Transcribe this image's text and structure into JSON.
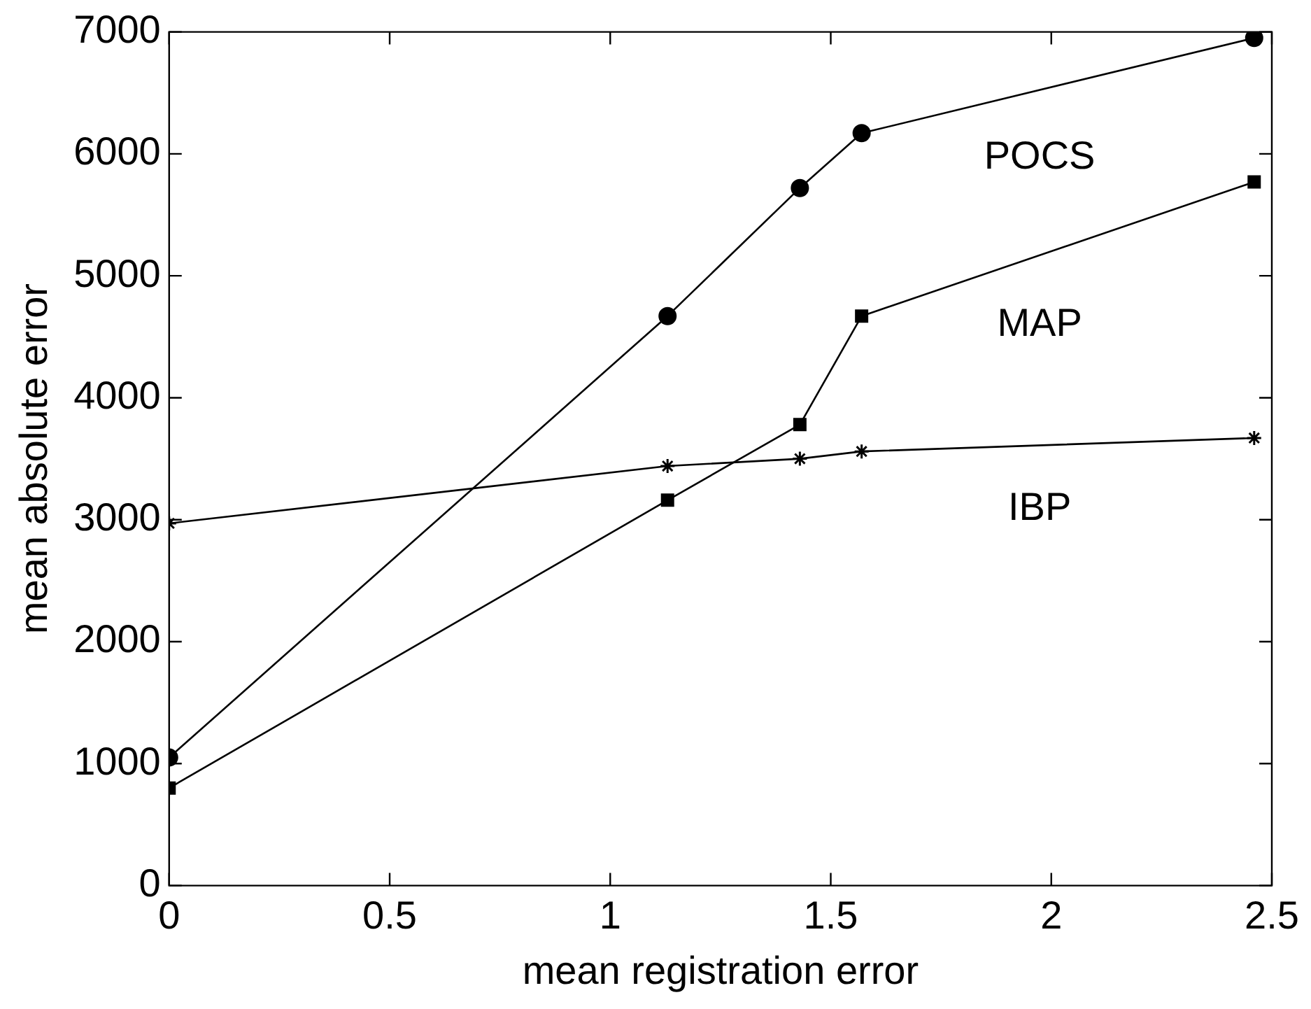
{
  "chart_data": {
    "type": "line",
    "xlabel": "mean registration error",
    "ylabel": "mean absolute error",
    "xlim": [
      0,
      2.5
    ],
    "xticks": [
      0,
      0.5,
      1,
      1.5,
      2,
      2.5
    ],
    "ylim": [
      0,
      7000
    ],
    "yticks": [
      0,
      1000,
      2000,
      3000,
      4000,
      5000,
      6000,
      7000
    ],
    "grid": false,
    "legend": false,
    "line_style": "solid",
    "series": [
      {
        "name": "POCS",
        "color": "#000000",
        "marker": "circle",
        "x": [
          0,
          1.13,
          1.43,
          1.57,
          2.46
        ],
        "values": [
          1050,
          4670,
          5720,
          6170,
          6950
        ]
      },
      {
        "name": "MAP",
        "color": "#000000",
        "marker": "square",
        "x": [
          0,
          1.13,
          1.43,
          1.57,
          2.46
        ],
        "values": [
          800,
          3160,
          3780,
          4670,
          5770
        ]
      },
      {
        "name": "IBP",
        "color": "#000000",
        "marker": "cross",
        "x": [
          0,
          1.13,
          1.43,
          1.57,
          2.46
        ],
        "values": [
          2970,
          3440,
          3500,
          3560,
          3670
        ]
      }
    ]
  }
}
